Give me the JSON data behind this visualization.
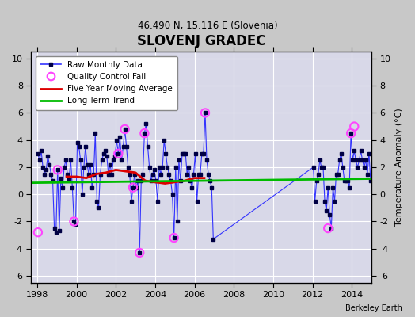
{
  "title": "SLOVENJ GRADEC",
  "subtitle": "46.490 N, 15.116 E (Slovenia)",
  "ylabel": "Temperature Anomaly (°C)",
  "attribution": "Berkeley Earth",
  "xlim": [
    1997.7,
    2015.0
  ],
  "ylim": [
    -6.5,
    10.5
  ],
  "yticks": [
    -6,
    -4,
    -2,
    0,
    2,
    4,
    6,
    8,
    10
  ],
  "xticks": [
    1998,
    2000,
    2002,
    2004,
    2006,
    2008,
    2010,
    2012,
    2014
  ],
  "raw_x": [
    1998.042,
    1998.125,
    1998.208,
    1998.292,
    1998.375,
    1998.458,
    1998.542,
    1998.625,
    1998.708,
    1998.792,
    1998.875,
    1998.958,
    1999.042,
    1999.125,
    1999.208,
    1999.292,
    1999.375,
    1999.458,
    1999.542,
    1999.625,
    1999.708,
    1999.792,
    1999.875,
    1999.958,
    2000.042,
    2000.125,
    2000.208,
    2000.292,
    2000.375,
    2000.458,
    2000.542,
    2000.625,
    2000.708,
    2000.792,
    2000.875,
    2000.958,
    2001.042,
    2001.125,
    2001.208,
    2001.292,
    2001.375,
    2001.458,
    2001.542,
    2001.625,
    2001.708,
    2001.792,
    2001.875,
    2001.958,
    2002.042,
    2002.125,
    2002.208,
    2002.292,
    2002.375,
    2002.458,
    2002.542,
    2002.625,
    2002.708,
    2002.792,
    2002.875,
    2002.958,
    2003.042,
    2003.125,
    2003.208,
    2003.292,
    2003.375,
    2003.458,
    2003.542,
    2003.625,
    2003.708,
    2003.792,
    2003.875,
    2003.958,
    2004.042,
    2004.125,
    2004.208,
    2004.292,
    2004.375,
    2004.458,
    2004.542,
    2004.625,
    2004.708,
    2004.792,
    2004.875,
    2004.958,
    2005.042,
    2005.125,
    2005.208,
    2005.292,
    2005.375,
    2005.458,
    2005.542,
    2005.625,
    2005.708,
    2005.792,
    2005.875,
    2005.958,
    2006.042,
    2006.125,
    2006.208,
    2006.292,
    2006.375,
    2006.458,
    2006.542,
    2006.625,
    2006.708,
    2006.792,
    2006.875,
    2006.958,
    2012.042,
    2012.125,
    2012.208,
    2012.292,
    2012.375,
    2012.458,
    2012.542,
    2012.625,
    2012.708,
    2012.792,
    2012.875,
    2012.958,
    2013.042,
    2013.125,
    2013.208,
    2013.292,
    2013.375,
    2013.458,
    2013.542,
    2013.625,
    2013.708,
    2013.792,
    2013.875,
    2013.958,
    2014.042,
    2014.125,
    2014.208,
    2014.292,
    2014.375,
    2014.458,
    2014.542,
    2014.625,
    2014.708,
    2014.792,
    2014.875,
    2014.958
  ],
  "raw_y": [
    3.0,
    2.5,
    3.2,
    2.0,
    1.5,
    1.8,
    2.8,
    2.2,
    1.5,
    1.0,
    -2.5,
    -2.8,
    1.8,
    -2.7,
    1.2,
    0.5,
    2.0,
    2.5,
    1.5,
    1.2,
    2.5,
    0.5,
    -2.0,
    -2.2,
    3.8,
    3.5,
    2.5,
    0.0,
    2.0,
    3.5,
    2.2,
    1.5,
    2.2,
    0.5,
    1.5,
    4.5,
    -0.5,
    -1.0,
    1.5,
    2.5,
    3.0,
    3.2,
    2.8,
    1.5,
    2.2,
    1.5,
    2.5,
    2.8,
    4.0,
    3.0,
    4.2,
    2.5,
    3.5,
    4.8,
    3.5,
    2.0,
    1.5,
    -0.5,
    0.5,
    1.5,
    0.5,
    1.0,
    -4.3,
    1.0,
    1.5,
    4.5,
    5.2,
    3.5,
    2.0,
    1.0,
    1.5,
    1.8,
    1.0,
    -0.5,
    2.0,
    1.5,
    2.0,
    4.0,
    3.0,
    2.0,
    1.5,
    1.0,
    0.0,
    -3.2,
    2.0,
    -2.0,
    2.5,
    1.0,
    3.0,
    3.0,
    3.0,
    1.5,
    2.0,
    1.0,
    0.5,
    1.5,
    3.0,
    -0.5,
    1.5,
    1.5,
    3.0,
    3.0,
    6.0,
    2.5,
    1.5,
    1.0,
    0.5,
    -3.3,
    2.0,
    -0.5,
    1.0,
    1.5,
    2.5,
    2.0,
    2.0,
    -0.5,
    -1.2,
    0.5,
    -1.5,
    -2.5,
    0.5,
    -0.5,
    1.5,
    1.5,
    2.5,
    3.0,
    2.0,
    1.0,
    1.0,
    1.0,
    0.5,
    4.5,
    2.5,
    3.2,
    2.5,
    2.0,
    2.5,
    3.2,
    2.5,
    2.0,
    2.5,
    1.5,
    3.0,
    1.0
  ],
  "qc_fail_x": [
    1998.042,
    1999.042,
    1999.875,
    2002.125,
    2002.458,
    2002.875,
    2003.208,
    2003.458,
    2004.958,
    2006.542,
    2012.792,
    2013.958,
    2014.125
  ],
  "qc_fail_y": [
    -2.8,
    1.8,
    -2.0,
    3.0,
    4.8,
    0.5,
    -4.3,
    4.5,
    -3.2,
    6.0,
    -2.5,
    4.5,
    5.0
  ],
  "moving_avg_x": [
    1999.5,
    2000.0,
    2000.5,
    2001.0,
    2001.5,
    2002.0,
    2002.5,
    2003.0,
    2003.5,
    2004.0,
    2004.5,
    2005.0,
    2005.5,
    2006.0,
    2006.5
  ],
  "moving_avg_y": [
    1.3,
    1.3,
    1.2,
    1.5,
    1.6,
    1.8,
    1.7,
    1.6,
    1.0,
    0.9,
    0.8,
    0.9,
    1.0,
    1.2,
    1.2
  ],
  "trend_x": [
    1997.7,
    2015.0
  ],
  "trend_y": [
    0.85,
    1.15
  ],
  "colors": {
    "raw_line": "#3333FF",
    "raw_marker": "#000044",
    "qc_fail": "#FF44FF",
    "moving_avg": "#DD0000",
    "trend": "#00BB00",
    "fig_bg": "#C8C8C8",
    "plot_bg": "#D8D8E8",
    "grid": "#FFFFFF"
  }
}
